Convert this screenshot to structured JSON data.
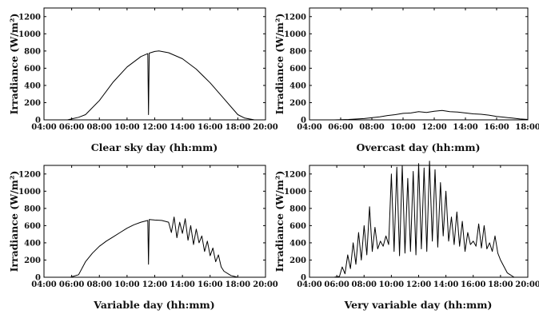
{
  "chart_data": [
    {
      "type": "line",
      "xlabel": "Clear sky day (hh:mm)",
      "ylabel": "Irradiance (W/m²)",
      "xlim": [
        4,
        20
      ],
      "ylim": [
        0,
        1300
      ],
      "xticks": [
        "04:00",
        "06:00",
        "08:00",
        "10:00",
        "12:00",
        "14:00",
        "16:00",
        "18:00",
        "20:00"
      ],
      "yticks": [
        "0",
        "200",
        "400",
        "600",
        "800",
        "1000",
        "1200"
      ],
      "x": [
        5.7,
        6.5,
        7.0,
        8.0,
        9.0,
        10.0,
        11.0,
        11.5,
        11.55,
        11.6,
        12.0,
        12.3,
        13.0,
        14.0,
        15.0,
        16.0,
        17.0,
        18.0,
        18.5,
        19.2
      ],
      "y": [
        0,
        30,
        60,
        225,
        440,
        615,
        735,
        770,
        60,
        775,
        795,
        800,
        780,
        710,
        590,
        430,
        245,
        60,
        20,
        0
      ],
      "series": [
        {
          "name": "",
          "color": "#000000"
        }
      ]
    },
    {
      "type": "line",
      "xlabel": "Overcast day (hh:mm)",
      "ylabel": "Irradiance (W/m²)",
      "xlim": [
        4,
        18
      ],
      "ylim": [
        0,
        1300
      ],
      "xticks": [
        "04:00",
        "06:00",
        "08:00",
        "10:00",
        "12:00",
        "14:00",
        "16:00",
        "18:00"
      ],
      "yticks": [
        "0",
        "200",
        "400",
        "600",
        "800",
        "1000",
        "1200"
      ],
      "x": [
        5.6,
        6.5,
        7.5,
        8.5,
        9.0,
        9.5,
        10.0,
        10.5,
        11.0,
        11.5,
        12.0,
        12.5,
        13.0,
        13.5,
        14.0,
        14.5,
        15.0,
        15.5,
        16.0,
        16.5,
        17.0,
        17.5,
        18.0
      ],
      "y": [
        0,
        5,
        15,
        35,
        50,
        60,
        75,
        80,
        95,
        85,
        100,
        110,
        95,
        90,
        80,
        70,
        65,
        55,
        40,
        30,
        20,
        10,
        5
      ],
      "series": [
        {
          "name": "",
          "color": "#000000"
        }
      ]
    },
    {
      "type": "line",
      "xlabel": "Variable day (hh:mm)",
      "ylabel": "Irradiance (W/m²)",
      "xlim": [
        4,
        20
      ],
      "ylim": [
        0,
        1300
      ],
      "xticks": [
        "04:00",
        "06:00",
        "08:00",
        "10:00",
        "12:00",
        "14:00",
        "16:00",
        "18:00",
        "20:00"
      ],
      "yticks": [
        "0",
        "200",
        "400",
        "600",
        "800",
        "1000",
        "1200"
      ],
      "x": [
        5.9,
        6.5,
        7.0,
        7.5,
        8.0,
        8.5,
        9.0,
        9.5,
        10.0,
        10.5,
        11.0,
        11.5,
        11.55,
        11.6,
        12.0,
        12.5,
        13.0,
        13.2,
        13.4,
        13.6,
        13.8,
        14.0,
        14.2,
        14.4,
        14.6,
        14.8,
        15.0,
        15.2,
        15.4,
        15.6,
        15.8,
        16.0,
        16.2,
        16.4,
        16.6,
        16.8,
        17.0,
        17.5,
        18.0
      ],
      "y": [
        0,
        30,
        180,
        280,
        360,
        420,
        470,
        520,
        570,
        610,
        640,
        660,
        150,
        670,
        665,
        660,
        640,
        520,
        700,
        460,
        640,
        510,
        680,
        430,
        600,
        380,
        560,
        400,
        480,
        300,
        420,
        250,
        340,
        180,
        260,
        120,
        70,
        20,
        0
      ],
      "series": [
        {
          "name": "",
          "color": "#000000"
        }
      ]
    },
    {
      "type": "line",
      "xlabel": "Very variable day (hh:mm)",
      "ylabel": "Irradiance (W/m²)",
      "xlim": [
        4,
        20
      ],
      "ylim": [
        0,
        1300
      ],
      "xticks": [
        "04:00",
        "06:00",
        "08:00",
        "10:00",
        "12:00",
        "14:00",
        "16:00",
        "18:00",
        "20:00"
      ],
      "yticks": [
        "0",
        "200",
        "400",
        "600",
        "800",
        "1000",
        "1200"
      ],
      "x": [
        5.8,
        6.2,
        6.4,
        6.6,
        6.8,
        7.0,
        7.2,
        7.4,
        7.6,
        7.8,
        8.0,
        8.2,
        8.4,
        8.6,
        8.8,
        9.0,
        9.2,
        9.4,
        9.6,
        9.8,
        10.0,
        10.2,
        10.4,
        10.6,
        10.8,
        11.0,
        11.2,
        11.4,
        11.6,
        11.8,
        12.0,
        12.2,
        12.4,
        12.6,
        12.8,
        13.0,
        13.2,
        13.4,
        13.6,
        13.8,
        14.0,
        14.2,
        14.4,
        14.6,
        14.8,
        15.0,
        15.2,
        15.4,
        15.6,
        15.8,
        16.0,
        16.2,
        16.4,
        16.6,
        16.8,
        17.0,
        17.2,
        17.4,
        17.6,
        17.8,
        18.0,
        18.5,
        19.0
      ],
      "y": [
        0,
        10,
        120,
        40,
        260,
        100,
        400,
        150,
        520,
        200,
        600,
        260,
        820,
        300,
        580,
        330,
        420,
        360,
        480,
        380,
        1200,
        300,
        1280,
        250,
        1300,
        280,
        1150,
        300,
        1230,
        260,
        1320,
        330,
        1270,
        300,
        1350,
        420,
        1250,
        350,
        1100,
        480,
        1000,
        420,
        700,
        380,
        760,
        360,
        650,
        300,
        520,
        380,
        420,
        360,
        620,
        340,
        600,
        330,
        400,
        300,
        480,
        280,
        200,
        50,
        0
      ],
      "series": [
        {
          "name": "",
          "color": "#000000"
        }
      ]
    }
  ]
}
